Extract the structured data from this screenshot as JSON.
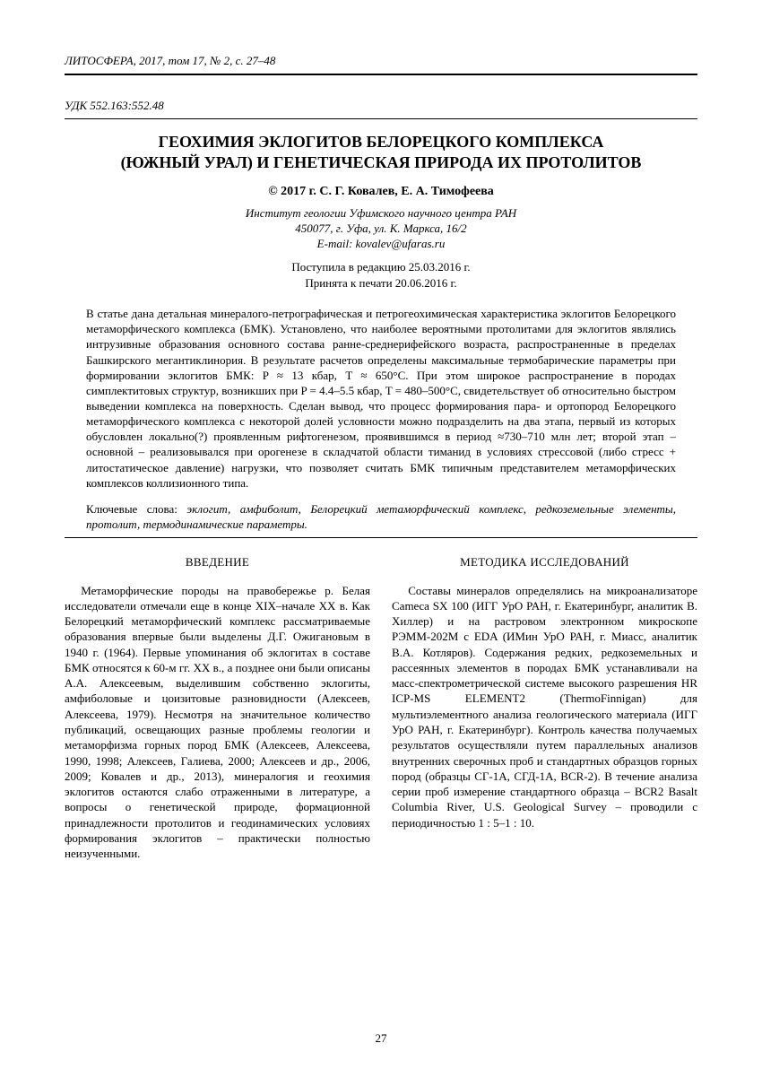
{
  "journal_header": "ЛИТОСФЕРА, 2017, том 17, № 2, с. 27–48",
  "udc": "УДК 552.163:552.48",
  "title_line1": "ГЕОХИМИЯ ЭКЛОГИТОВ БЕЛОРЕЦКОГО КОМПЛЕКСА",
  "title_line2": "(ЮЖНЫЙ УРАЛ) И ГЕНЕТИЧЕСКАЯ ПРИРОДА ИХ ПРОТОЛИТОВ",
  "authors": "© 2017 г.  С. Г. Ковалев, Е. А. Тимофеева",
  "affiliation_line1": "Институт геологии Уфимского научного центра РАН",
  "affiliation_line2": "450077, г. Уфа, ул. К. Маркса, 16/2",
  "affiliation_line3": "E-mail: kovalev@ufaras.ru",
  "received": "Поступила в редакцию 25.03.2016 г.",
  "accepted": "Принята к печати 20.06.2016 г.",
  "abstract": "В статье дана детальная минералого-петрографическая и петрогеохимическая характеристика эклогитов Белорецкого метаморфического комплекса (БМК). Установлено, что наиболее вероятными протолитами для эклогитов являлись интрузивные образования основного состава ранне-среднерифейского возраста, распространенные в пределах Башкирского мегантиклинория. В результате расчетов определены максимальные термобарические параметры при формировании эклогитов БМК: P ≈ 13 кбар, T ≈ 650°C. При этом широкое распространение в породах симплектитовых структур, возникших при P = 4.4–5.5 кбар, T = 480–500°C, свидетельствует об относительно быстром выведении комплекса на поверхность. Сделан вывод, что процесс формирования пара- и ортопород Белорецкого метаморфического комплекса с некоторой долей условности можно подразделить на два этапа, первый из которых обусловлен локально(?) проявленным рифтогенезом, проявившимся в период ≈730–710 млн лет; второй этап – основной – реализовывался при орогенезе в складчатой области тиманид в условиях стрессовой (либо стресс + литостатическое давление) нагрузки, что позволяет считать БМК типичным представителем метаморфических комплексов коллизионного типа.",
  "keywords_label": "Ключевые слова: ",
  "keywords_text": "эклогит, амфиболит, Белорецкий метаморфический комплекс, редкоземельные элементы, протолит, термодинамические параметры.",
  "section1_head": "ВВЕДЕНИЕ",
  "section1_body": "Метаморфические породы на правобережье р. Белая исследователи отмечали еще в конце XIX–начале XX в. Как Белорецкий метаморфический комплекс рассматриваемые образования впервые были выделены Д.Г. Ожигановым в 1940 г. (1964). Первые упоминания об эклогитах в составе БМК относятся к 60-м гг. XX в., а позднее они были описаны А.А. Алексеевым, выделившим собственно эклогиты, амфиболовые и цоизитовые разновидности (Алексеев, Алексеева, 1979). Несмотря на значительное количество публикаций, освещающих разные проблемы геологии и метаморфизма горных пород БМК (Алексеев, Алексеева, 1990, 1998; Алексеев, Галиева, 2000; Алексеев и др., 2006, 2009; Ковалев и др., 2013), минералогия и геохимия эклогитов остаются слабо отраженными в литературе, а вопросы о генетической природе, формационной принадлежности протолитов и геодинамических условиях формирования эклогитов – практически полностью неизученными.",
  "section2_head": "МЕТОДИКА ИССЛЕДОВАНИЙ",
  "section2_body": "Составы минералов определялись на микроанализаторе Cameca SX 100 (ИГГ УрО РАН, г. Екатеринбург, аналитик В. Хиллер) и на растровом электронном микроскопе РЭММ-202М с EDA (ИМин УрО РАН, г. Миасс, аналитик В.А. Котляров). Содержания редких, редкоземельных и рассеянных элементов в породах БМК устанавливали на масс-спектрометрической системе высокого разрешения HR ICP-MS ELEMENT2 (ThermoFinnigan) для мультиэлементного анализа геологического материала (ИГГ УрО РАН, г. Екатеринбург). Контроль качества получаемых результатов осуществляли путем параллельных анализов внутренних сверочных проб и стандартных образцов горных пород (образцы СГ-1А, СГД-1А, BCR-2). В течение анализа серии проб измерение стандартного образца – BCR2 Basalt Columbia River, U.S. Geological Survey – проводили с периодичностью 1 : 5–1 : 10.",
  "page_number": "27"
}
